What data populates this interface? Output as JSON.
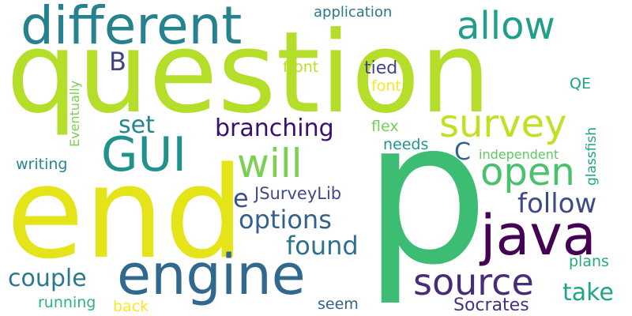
{
  "word_cloud": {
    "words": [
      {
        "id": "question",
        "text": "question",
        "color": "#b5de2b"
      },
      {
        "id": "p",
        "text": "p",
        "color": "#3dbc74"
      },
      {
        "id": "end",
        "text": "end",
        "color": "#e5e419"
      },
      {
        "id": "different",
        "text": "different",
        "color": "#26828e"
      },
      {
        "id": "engine",
        "text": "engine",
        "color": "#31688e"
      },
      {
        "id": "java",
        "text": "java",
        "color": "#440154"
      },
      {
        "id": "GUI",
        "text": "GUI",
        "color": "#21918c"
      },
      {
        "id": "survey",
        "text": "survey",
        "color": "#c2df23"
      },
      {
        "id": "allow",
        "text": "allow",
        "color": "#1f9e89"
      },
      {
        "id": "source",
        "text": "source",
        "color": "#472c7a"
      },
      {
        "id": "will",
        "text": "will",
        "color": "#7ad151"
      },
      {
        "id": "open",
        "text": "open",
        "color": "#4ac16d"
      },
      {
        "id": "branching",
        "text": "branching",
        "color": "#3b0f70"
      },
      {
        "id": "options",
        "text": "options",
        "color": "#355f8d"
      },
      {
        "id": "follow",
        "text": "follow",
        "color": "#3e4989"
      },
      {
        "id": "found",
        "text": "found",
        "color": "#2c728e"
      },
      {
        "id": "couple",
        "text": "couple",
        "color": "#2a788e"
      },
      {
        "id": "take",
        "text": "take",
        "color": "#20a486"
      },
      {
        "id": "set",
        "text": "set",
        "color": "#25858e"
      },
      {
        "id": "B",
        "text": "B",
        "color": "#414487"
      },
      {
        "id": "C",
        "text": "C",
        "color": "#33638d"
      },
      {
        "id": "e",
        "text": "e",
        "color": "#3b528b"
      },
      {
        "id": "Socrates",
        "text": "Socrates",
        "color": "#46327e"
      },
      {
        "id": "JSurveyLib",
        "text": "JSurveyLib",
        "color": "#3e4a89"
      },
      {
        "id": "application",
        "text": "application",
        "color": "#2a788e"
      },
      {
        "id": "tied",
        "text": "tied",
        "color": "#404688"
      },
      {
        "id": "front",
        "text": "front",
        "color": "#b5de2b"
      },
      {
        "id": "font",
        "text": "font",
        "color": "#fde725"
      },
      {
        "id": "flex",
        "text": "flex",
        "color": "#73d056"
      },
      {
        "id": "needs",
        "text": "needs",
        "color": "#1f968b"
      },
      {
        "id": "writing",
        "text": "writing",
        "color": "#24878e"
      },
      {
        "id": "independent",
        "text": "independent",
        "color": "#5ec962"
      },
      {
        "id": "QE",
        "text": "QE",
        "color": "#1fa188"
      },
      {
        "id": "plans",
        "text": "plans",
        "color": "#25ab82"
      },
      {
        "id": "seem",
        "text": "seem",
        "color": "#33638d"
      },
      {
        "id": "running",
        "text": "running",
        "color": "#2db27d"
      },
      {
        "id": "back",
        "text": "back",
        "color": "#fde725"
      },
      {
        "id": "Eventually",
        "text": "Eventually",
        "color": "#7ad151"
      },
      {
        "id": "glassfish",
        "text": "glassfish",
        "color": "#20a386"
      }
    ]
  }
}
